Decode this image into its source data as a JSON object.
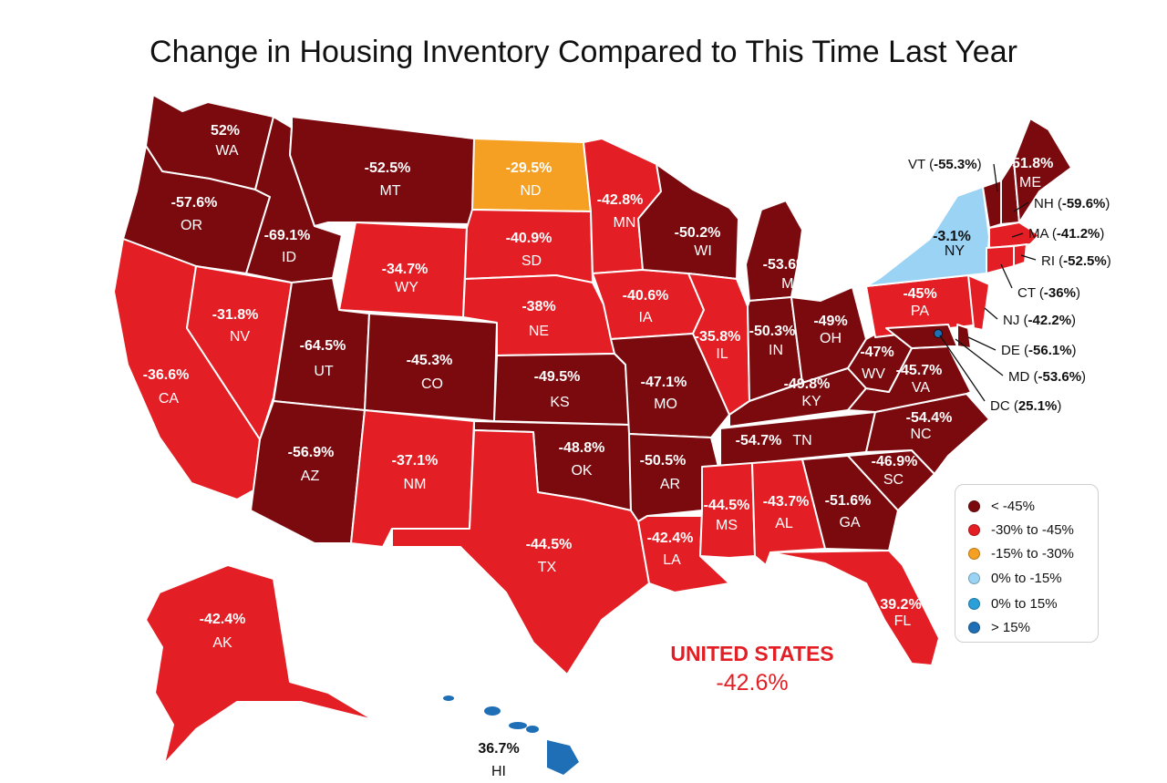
{
  "title": "Change in Housing Inventory Compared to This Time Last Year",
  "colors": {
    "lt_neg45": "#7b0a0e",
    "neg30_to_neg45": "#e31e24",
    "neg15_to_neg30": "#f5a023",
    "zero_to_neg15": "#9bd3f5",
    "zero_to_15": "#2a9fd8",
    "gt15": "#1f6fb6"
  },
  "legend": [
    {
      "label": "< -45%",
      "color": "#7b0a0e"
    },
    {
      "label": "-30% to -45%",
      "color": "#e31e24"
    },
    {
      "label": "-15% to -30%",
      "color": "#f5a023"
    },
    {
      "label": "0% to -15%",
      "color": "#9bd3f5"
    },
    {
      "label": "0% to 15%",
      "color": "#2a9fd8"
    },
    {
      "label": "> 15%",
      "color": "#1f6fb6"
    }
  ],
  "us_total": {
    "name": "UNITED STATES",
    "value": "-42.6%"
  },
  "states": {
    "WA": {
      "abbr": "WA",
      "value": "52%"
    },
    "OR": {
      "abbr": "OR",
      "value": "-57.6%"
    },
    "CA": {
      "abbr": "CA",
      "value": "-36.6%"
    },
    "NV": {
      "abbr": "NV",
      "value": "-31.8%"
    },
    "ID": {
      "abbr": "ID",
      "value": "-69.1%"
    },
    "MT": {
      "abbr": "MT",
      "value": "-52.5%"
    },
    "WY": {
      "abbr": "WY",
      "value": "-34.7%"
    },
    "UT": {
      "abbr": "UT",
      "value": "-64.5%"
    },
    "AZ": {
      "abbr": "AZ",
      "value": "-56.9%"
    },
    "CO": {
      "abbr": "CO",
      "value": "-45.3%"
    },
    "NM": {
      "abbr": "NM",
      "value": "-37.1%"
    },
    "ND": {
      "abbr": "ND",
      "value": "-29.5%"
    },
    "SD": {
      "abbr": "SD",
      "value": "-40.9%"
    },
    "NE": {
      "abbr": "NE",
      "value": "-38%"
    },
    "KS": {
      "abbr": "KS",
      "value": "-49.5%"
    },
    "OK": {
      "abbr": "OK",
      "value": "-48.8%"
    },
    "TX": {
      "abbr": "TX",
      "value": "-44.5%"
    },
    "MN": {
      "abbr": "MN",
      "value": "-42.8%"
    },
    "IA": {
      "abbr": "IA",
      "value": "-40.6%"
    },
    "MO": {
      "abbr": "MO",
      "value": "-47.1%"
    },
    "AR": {
      "abbr": "AR",
      "value": "-50.5%"
    },
    "LA": {
      "abbr": "LA",
      "value": "-42.4%"
    },
    "WI": {
      "abbr": "WI",
      "value": "-50.2%"
    },
    "IL": {
      "abbr": "IL",
      "value": "-35.8%"
    },
    "MI": {
      "abbr": "MI",
      "value": "-53.6%"
    },
    "IN": {
      "abbr": "IN",
      "value": "-50.3%"
    },
    "OH": {
      "abbr": "OH",
      "value": "-49%"
    },
    "KY": {
      "abbr": "KY",
      "value": "-49.8%"
    },
    "TN": {
      "abbr": "TN",
      "value": "-54.7%"
    },
    "MS": {
      "abbr": "MS",
      "value": "-44.5%"
    },
    "AL": {
      "abbr": "AL",
      "value": "-43.7%"
    },
    "GA": {
      "abbr": "GA",
      "value": "-51.6%"
    },
    "FL": {
      "abbr": "FL",
      "value": "39.2%"
    },
    "SC": {
      "abbr": "SC",
      "value": "-46.9%"
    },
    "NC": {
      "abbr": "NC",
      "value": "-54.4%"
    },
    "VA": {
      "abbr": "VA",
      "value": "-45.7%"
    },
    "WV": {
      "abbr": "WV",
      "value": "-47%"
    },
    "PA": {
      "abbr": "PA",
      "value": "-45%"
    },
    "NY": {
      "abbr": "NY",
      "value": "-3.1%"
    },
    "ME": {
      "abbr": "ME",
      "value": "-51.8%"
    },
    "AK": {
      "abbr": "AK",
      "value": "-42.4%"
    },
    "HI": {
      "abbr": "HI",
      "value": "36.7%"
    }
  },
  "callouts": {
    "VT": {
      "abbr": "VT",
      "value": "-55.3%"
    },
    "NH": {
      "abbr": "NH",
      "value": "-59.6%"
    },
    "MA": {
      "abbr": "MA",
      "value": "-41.2%"
    },
    "RI": {
      "abbr": "RI",
      "value": "-52.5%"
    },
    "CT": {
      "abbr": "CT",
      "value": "-36%"
    },
    "NJ": {
      "abbr": "NJ",
      "value": "-42.2%"
    },
    "DE": {
      "abbr": "DE",
      "value": "-56.1%"
    },
    "MD": {
      "abbr": "MD",
      "value": "-53.6%"
    },
    "DC": {
      "abbr": "DC",
      "value": "25.1%"
    }
  }
}
